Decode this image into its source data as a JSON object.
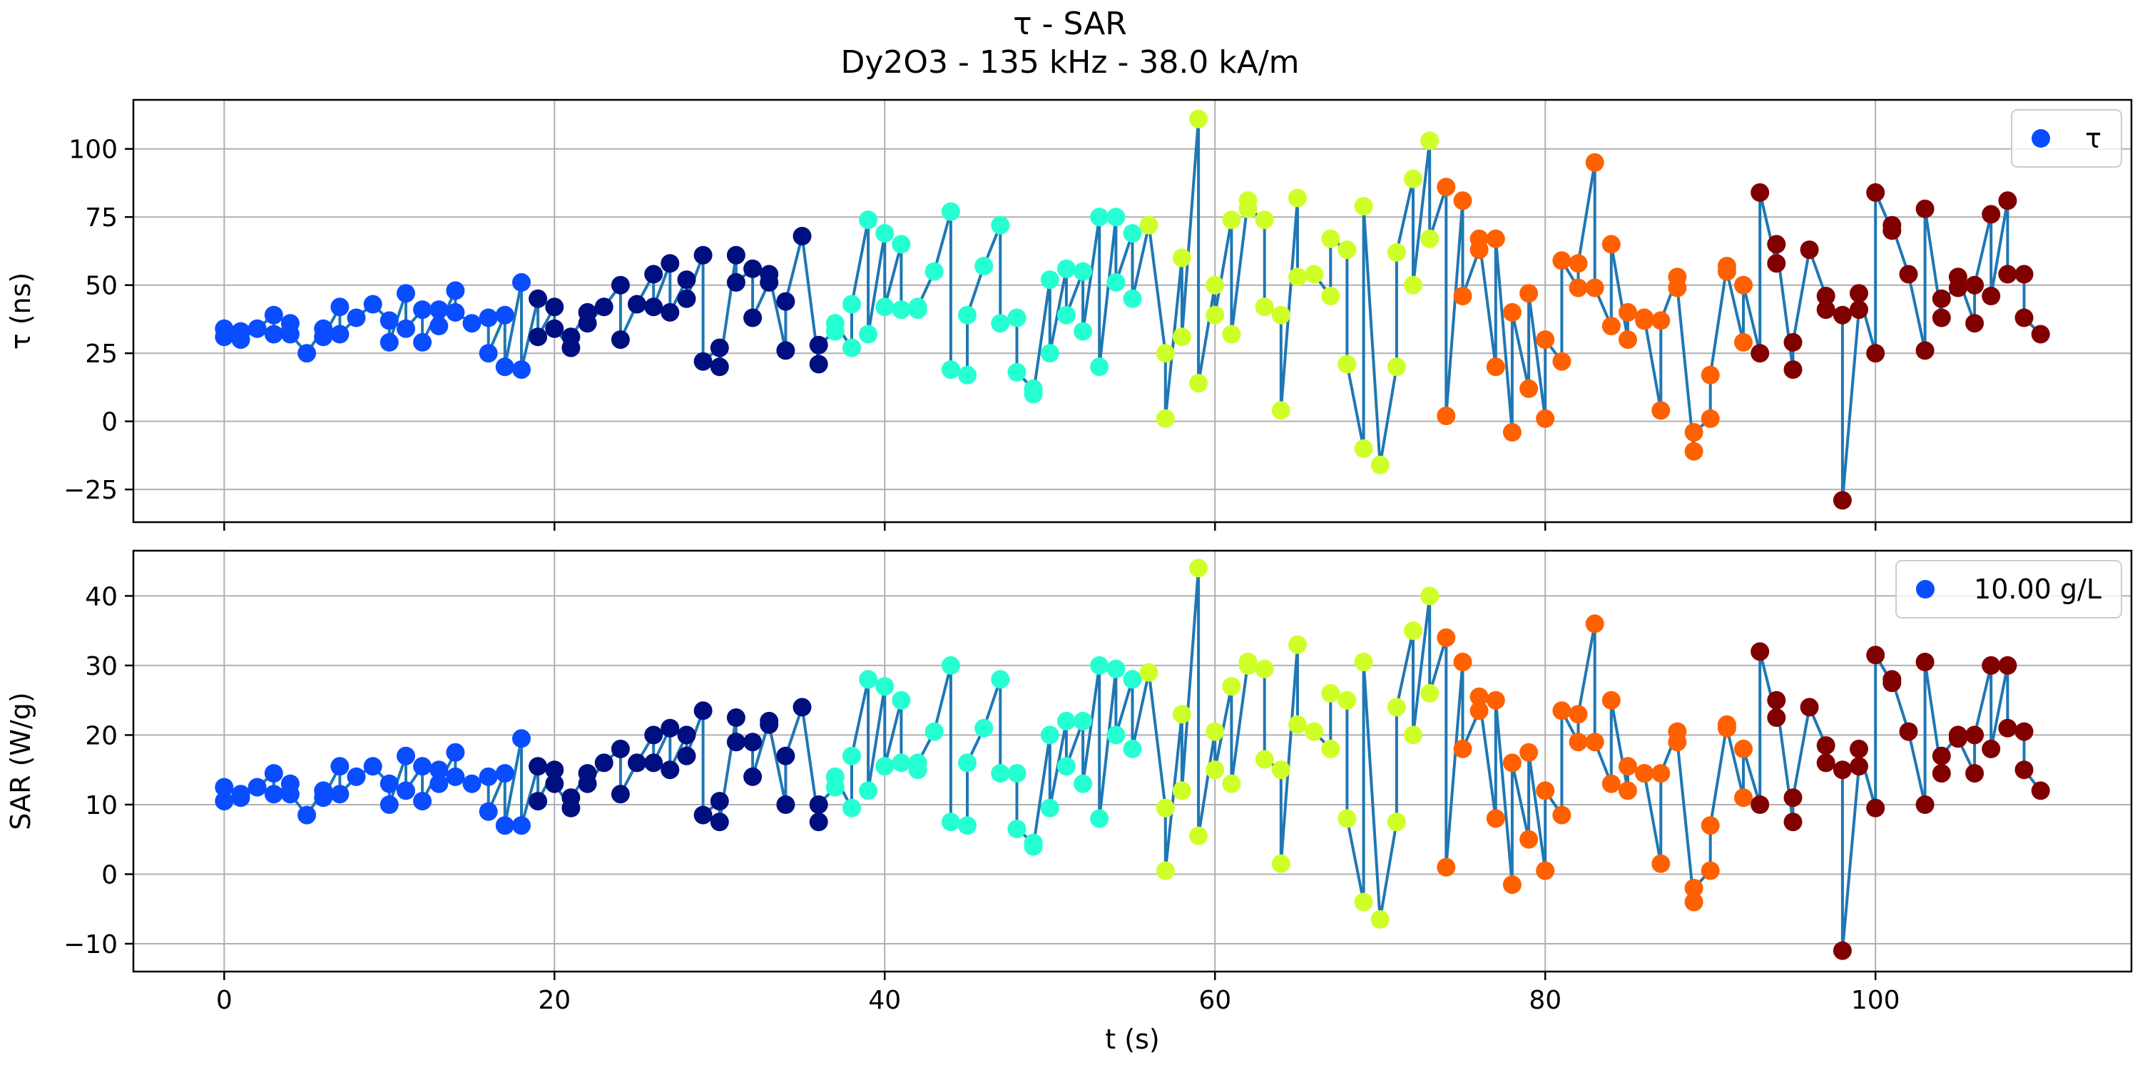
{
  "title": {
    "line1": "τ - SAR",
    "line2": "Dy2O3 - 135 kHz - 38.0 kA/m"
  },
  "colors": {
    "line": "#1f77b4",
    "grid": "#b0b0b0",
    "axis": "#000000",
    "legend_marker": "#0a4cff",
    "legend_border": "#cccccc",
    "time_bin_colors": [
      "#0a4cff",
      "#000f80",
      "#25ffd2",
      "#cfff28",
      "#ff6000",
      "#800000"
    ]
  },
  "chart_data": [
    {
      "type": "line",
      "ylabel": "τ (ns)",
      "xlabel": "",
      "xlim": [
        -5.5,
        115.5
      ],
      "ylim": [
        -37,
        118
      ],
      "xticks": [
        0,
        20,
        40,
        60,
        80,
        100
      ],
      "xtick_labels_shown": false,
      "yticks": [
        -25,
        0,
        25,
        50,
        75,
        100
      ],
      "grid": true,
      "legend": {
        "label": "τ",
        "location": "upper-right"
      },
      "series": [
        {
          "markers": true,
          "x": [
            0,
            0,
            1,
            1,
            2,
            3,
            3,
            4,
            4,
            5,
            6,
            6,
            7,
            7,
            8,
            9,
            10,
            10,
            11,
            11,
            12,
            12,
            13,
            13,
            14,
            14,
            15,
            16,
            16,
            17,
            17,
            18,
            18,
            19,
            19,
            20,
            20,
            21,
            21,
            22,
            22,
            23,
            24,
            24,
            25,
            26,
            26,
            27,
            27,
            28,
            28,
            29,
            29,
            30,
            30,
            31,
            31,
            32,
            32,
            33,
            33,
            34,
            34,
            35,
            36,
            36,
            37,
            37,
            38,
            38,
            39,
            39,
            40,
            40,
            41,
            41,
            42,
            42,
            43,
            44,
            44,
            45,
            45,
            46,
            47,
            47,
            48,
            48,
            49,
            49,
            50,
            50,
            51,
            51,
            52,
            52,
            53,
            53,
            54,
            54,
            55,
            55,
            56,
            57,
            57,
            58,
            58,
            59,
            59,
            60,
            60,
            61,
            61,
            62,
            62,
            63,
            63,
            64,
            64,
            65,
            65,
            66,
            67,
            67,
            68,
            68,
            69,
            69,
            70,
            71,
            71,
            72,
            72,
            73,
            73,
            74,
            74,
            75,
            75,
            76,
            76,
            77,
            77,
            78,
            78,
            79,
            79,
            80,
            80,
            81,
            81,
            82,
            82,
            83,
            83,
            84,
            84,
            85,
            85,
            86,
            86,
            87,
            87,
            88,
            88,
            89,
            89,
            90,
            90,
            91,
            91,
            92,
            92,
            93,
            93,
            94,
            94,
            95,
            95,
            96,
            97,
            97,
            98,
            98,
            99,
            99,
            100,
            100,
            101,
            101,
            102,
            103,
            103,
            104,
            104,
            105,
            105,
            106,
            106,
            107,
            107,
            108,
            108,
            109,
            109,
            110
          ],
          "y": [
            34,
            31,
            33,
            30,
            34,
            39,
            32,
            36,
            32,
            25,
            34,
            31,
            42,
            32,
            38,
            43,
            37,
            29,
            47,
            34,
            41,
            29,
            41,
            35,
            48,
            40,
            36,
            38,
            25,
            39,
            20,
            51,
            19,
            45,
            31,
            42,
            34,
            27,
            31,
            40,
            36,
            42,
            50,
            30,
            43,
            54,
            42,
            58,
            40,
            52,
            45,
            61,
            22,
            27,
            20,
            61,
            51,
            56,
            38,
            51,
            54,
            26,
            44,
            68,
            21,
            28,
            33,
            36,
            27,
            43,
            74,
            32,
            69,
            42,
            65,
            41,
            41,
            42,
            55,
            77,
            19,
            17,
            39,
            57,
            72,
            36,
            38,
            18,
            12,
            10,
            52,
            25,
            56,
            39,
            55,
            33,
            75,
            20,
            75,
            51,
            69,
            45,
            72,
            25,
            1,
            60,
            31,
            111,
            14,
            50,
            39,
            74,
            32,
            81,
            78,
            74,
            42,
            39,
            4,
            82,
            53,
            54,
            46,
            67,
            63,
            21,
            -10,
            79,
            -16,
            20,
            62,
            89,
            50,
            103,
            67,
            86,
            2,
            81,
            46,
            63,
            67,
            20,
            67,
            -4,
            40,
            12,
            47,
            1,
            30,
            22,
            59,
            49,
            58,
            95,
            49,
            35,
            65,
            30,
            40,
            37,
            38,
            4,
            37,
            53,
            49,
            -11,
            -4,
            1,
            17,
            57,
            55,
            29,
            50,
            25,
            84,
            58,
            65,
            19,
            29,
            63,
            46,
            41,
            39,
            -29,
            41,
            47,
            25,
            84,
            70,
            72,
            54,
            26,
            78,
            38,
            45,
            49,
            53,
            36,
            50,
            76,
            46,
            81,
            54,
            54,
            38,
            32
          ]
        }
      ]
    },
    {
      "type": "line",
      "ylabel": "SAR (W/g)",
      "xlabel": "t (s)",
      "xlim": [
        -5.5,
        115.5
      ],
      "ylim": [
        -14,
        46.5
      ],
      "xticks": [
        0,
        20,
        40,
        60,
        80,
        100
      ],
      "xtick_labels_shown": true,
      "yticks": [
        -10,
        0,
        10,
        20,
        30,
        40
      ],
      "grid": true,
      "legend": {
        "label": "10.00 g/L",
        "location": "upper-right"
      },
      "series": [
        {
          "markers": true,
          "x": [
            0,
            0,
            1,
            1,
            2,
            3,
            3,
            4,
            4,
            5,
            6,
            6,
            7,
            7,
            8,
            9,
            10,
            10,
            11,
            11,
            12,
            12,
            13,
            13,
            14,
            14,
            15,
            16,
            16,
            17,
            17,
            18,
            18,
            19,
            19,
            20,
            20,
            21,
            21,
            22,
            22,
            23,
            24,
            24,
            25,
            26,
            26,
            27,
            27,
            28,
            28,
            29,
            29,
            30,
            30,
            31,
            31,
            32,
            32,
            33,
            33,
            34,
            34,
            35,
            36,
            36,
            37,
            37,
            38,
            38,
            39,
            39,
            40,
            40,
            41,
            41,
            42,
            42,
            43,
            44,
            44,
            45,
            45,
            46,
            47,
            47,
            48,
            48,
            49,
            49,
            50,
            50,
            51,
            51,
            52,
            52,
            53,
            53,
            54,
            54,
            55,
            55,
            56,
            57,
            57,
            58,
            58,
            59,
            59,
            60,
            60,
            61,
            61,
            62,
            62,
            63,
            63,
            64,
            64,
            65,
            65,
            66,
            67,
            67,
            68,
            68,
            69,
            69,
            70,
            71,
            71,
            72,
            72,
            73,
            73,
            74,
            74,
            75,
            75,
            76,
            76,
            77,
            77,
            78,
            78,
            79,
            79,
            80,
            80,
            81,
            81,
            82,
            82,
            83,
            83,
            84,
            84,
            85,
            85,
            86,
            86,
            87,
            87,
            88,
            88,
            89,
            89,
            90,
            90,
            91,
            91,
            92,
            92,
            93,
            93,
            94,
            94,
            95,
            95,
            96,
            97,
            97,
            98,
            98,
            99,
            99,
            100,
            100,
            101,
            101,
            102,
            103,
            103,
            104,
            104,
            105,
            105,
            106,
            106,
            107,
            107,
            108,
            108,
            109,
            109,
            110
          ],
          "y": [
            12.5,
            10.5,
            11.5,
            11,
            12.5,
            14.5,
            11.5,
            13,
            11.5,
            8.5,
            12,
            11,
            15.5,
            11.5,
            14,
            15.5,
            13,
            10,
            17,
            12,
            15.5,
            10.5,
            15,
            13,
            17.5,
            14,
            13,
            14,
            9,
            14.5,
            7,
            19.5,
            7,
            15.5,
            10.5,
            15,
            13,
            9.5,
            11,
            14.5,
            13,
            16,
            18,
            11.5,
            16,
            20,
            16,
            21,
            15,
            20,
            17,
            23.5,
            8.5,
            10.5,
            7.5,
            22.5,
            19,
            19,
            14,
            22,
            21.5,
            10,
            17,
            24,
            7.5,
            10,
            12.5,
            14,
            9.5,
            17,
            28,
            12,
            27,
            15.5,
            25,
            16,
            15,
            16,
            20.5,
            30,
            7.5,
            7,
            16,
            21,
            28,
            14.5,
            14.5,
            6.5,
            4.5,
            4,
            20,
            9.5,
            22,
            15.5,
            22,
            13,
            30,
            8,
            29.5,
            20,
            28,
            18,
            29,
            9.5,
            0.5,
            23,
            12,
            44,
            5.5,
            20.5,
            15,
            27,
            13,
            30.5,
            30,
            29.5,
            16.5,
            15,
            1.5,
            33,
            21.5,
            20.5,
            18,
            26,
            25,
            8,
            -4,
            30.5,
            -6.5,
            7.5,
            24,
            35,
            20,
            40,
            26,
            34,
            1,
            30.5,
            18,
            23.5,
            25.5,
            8,
            25,
            -1.5,
            16,
            5,
            17.5,
            0.5,
            12,
            8.5,
            23.5,
            19,
            23,
            36,
            19,
            13,
            25,
            12,
            15.5,
            14.5,
            14.5,
            1.5,
            14.5,
            20.5,
            19,
            -4,
            -2,
            0.5,
            7,
            21.5,
            21,
            11,
            18,
            10,
            32,
            22.5,
            25,
            7.5,
            11,
            24,
            18.5,
            16,
            15,
            -11,
            15.5,
            18,
            9.5,
            31.5,
            27.5,
            28,
            20.5,
            10,
            30.5,
            14.5,
            17,
            20,
            19.5,
            14.5,
            20,
            30,
            18,
            30,
            21,
            20.5,
            15,
            12
          ]
        }
      ]
    }
  ]
}
